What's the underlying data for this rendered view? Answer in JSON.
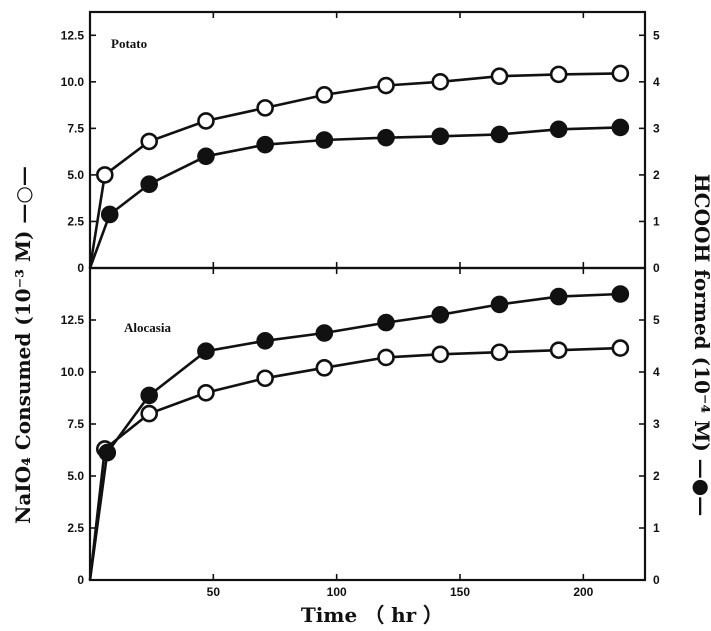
{
  "chart_data": [
    {
      "type": "line",
      "panel_label": "Potato",
      "x_range": [
        0,
        225
      ],
      "left_ylim": [
        0,
        13.75
      ],
      "right_ylim": [
        0,
        5.5
      ],
      "series": [
        {
          "marker": "open-circle",
          "axis": "left",
          "x": [
            0,
            6,
            24,
            47,
            71,
            95,
            120,
            142,
            166,
            190,
            215
          ],
          "values": [
            0,
            5.0,
            6.8,
            7.9,
            8.6,
            9.3,
            9.8,
            10.0,
            10.3,
            10.4,
            10.45
          ]
        },
        {
          "marker": "filled-circle",
          "axis": "right",
          "x": [
            0,
            8,
            24,
            47,
            71,
            95,
            120,
            142,
            166,
            190,
            215
          ],
          "values": [
            0,
            1.15,
            1.8,
            2.4,
            2.65,
            2.75,
            2.8,
            2.83,
            2.87,
            2.98,
            3.02
          ]
        }
      ]
    },
    {
      "type": "line",
      "panel_label": "Alocasia",
      "x_range": [
        0,
        225
      ],
      "left_ylim": [
        0,
        15
      ],
      "right_ylim": [
        0,
        6
      ],
      "series": [
        {
          "marker": "open-circle",
          "axis": "left",
          "x": [
            0,
            6,
            24,
            47,
            71,
            95,
            120,
            142,
            166,
            190,
            215
          ],
          "values": [
            0,
            6.3,
            8.0,
            9.0,
            9.7,
            10.2,
            10.7,
            10.85,
            10.95,
            11.05,
            11.15
          ]
        },
        {
          "marker": "filled-circle",
          "axis": "right",
          "x": [
            0,
            7,
            24,
            47,
            71,
            95,
            120,
            142,
            166,
            190,
            215
          ],
          "values": [
            0,
            2.45,
            3.55,
            4.4,
            4.6,
            4.75,
            4.95,
            5.1,
            5.3,
            5.45,
            5.5
          ]
        }
      ]
    }
  ],
  "axes": {
    "x_ticks": [
      "50",
      "100",
      "150",
      "200"
    ],
    "x_tick_values": [
      50,
      100,
      150,
      200
    ],
    "top_left_ticks": [
      "0",
      "2.5",
      "5.0",
      "7.5",
      "10.0",
      "12.5"
    ],
    "top_left_values": [
      0,
      2.5,
      5,
      7.5,
      10,
      12.5
    ],
    "top_right_ticks": [
      "0",
      "1",
      "2",
      "3",
      "4",
      "5"
    ],
    "top_right_values": [
      0,
      1,
      2,
      3,
      4,
      5
    ],
    "bottom_left_ticks": [
      "0",
      "2.5",
      "5.0",
      "7.5",
      "10.0",
      "12.5"
    ],
    "bottom_left_values": [
      0,
      2.5,
      5,
      7.5,
      10,
      12.5
    ],
    "bottom_right_ticks": [
      "0",
      "1",
      "2",
      "3",
      "4",
      "5"
    ],
    "bottom_right_values": [
      0,
      1,
      2,
      3,
      4,
      5
    ],
    "xlabel": "Time （ hr ）",
    "ylabel_left": "NaIO₄ Consumed (10⁻³ M)  —○—",
    "ylabel_right": "HCOOH formed (10⁻⁴ M)  —●—"
  },
  "colors": {
    "ink": "#111111",
    "background": "#ffffff"
  }
}
